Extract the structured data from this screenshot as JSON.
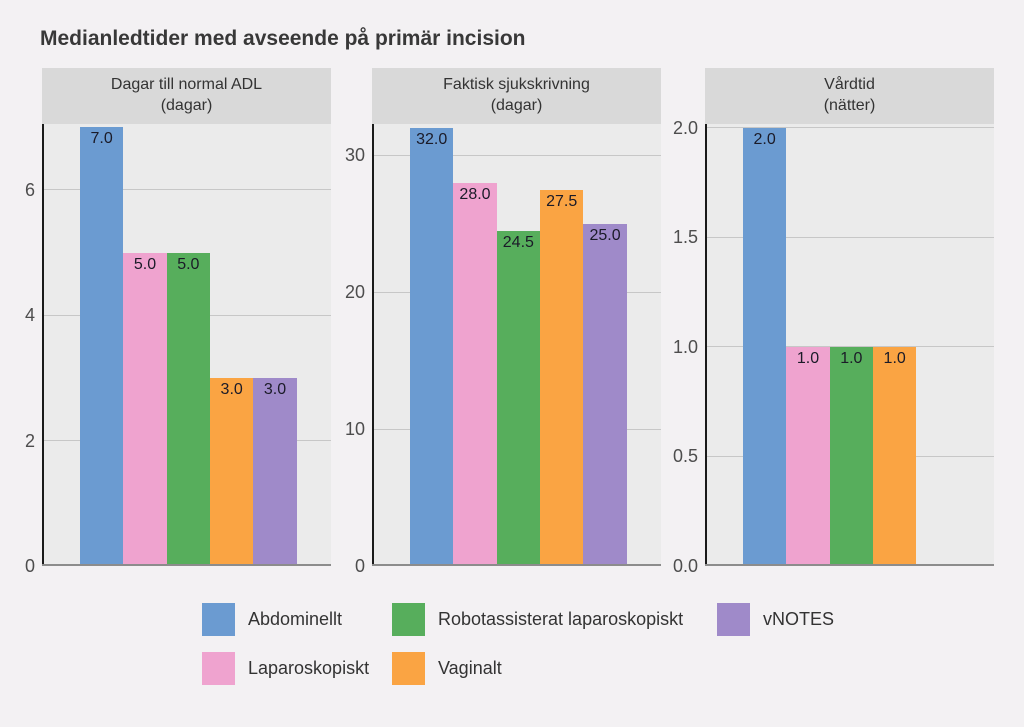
{
  "chart_data": {
    "type": "bar",
    "title": "Medianledtider med avseende på primär incision",
    "categories": [
      "Abdominellt",
      "Laparoskopiskt",
      "Robotassisterat laparoskopiskt",
      "Vaginalt",
      "vNOTES"
    ],
    "series_colors": {
      "Abdominellt": "#6B9BD1",
      "Laparoskopiskt": "#EFA3CF",
      "Robotassisterat laparoskopiskt": "#57AE5C",
      "Vaginalt": "#FAA443",
      "vNOTES": "#9F8AC9"
    },
    "panels": [
      {
        "title_lines": [
          "Dagar till normal ADL",
          "(dagar)"
        ],
        "values": [
          7.0,
          5.0,
          5.0,
          3.0,
          3.0
        ],
        "value_labels": [
          "7.0",
          "5.0",
          "5.0",
          "3.0",
          "3.0"
        ],
        "ylim": [
          0,
          7.05
        ],
        "yticks": [
          {
            "v": 0,
            "label": "0"
          },
          {
            "v": 2,
            "label": "2"
          },
          {
            "v": 4,
            "label": "4"
          },
          {
            "v": 6,
            "label": "6"
          }
        ]
      },
      {
        "title_lines": [
          "Faktisk sjukskrivning",
          "(dagar)"
        ],
        "values": [
          32.0,
          28.0,
          24.5,
          27.5,
          25.0
        ],
        "value_labels": [
          "32.0",
          "28.0",
          "24.5",
          "27.5",
          "25.0"
        ],
        "ylim": [
          0,
          32.3
        ],
        "yticks": [
          {
            "v": 0,
            "label": "0"
          },
          {
            "v": 10,
            "label": "10"
          },
          {
            "v": 20,
            "label": "20"
          },
          {
            "v": 30,
            "label": "30"
          }
        ]
      },
      {
        "title_lines": [
          "Vårdtid",
          "(nätter)"
        ],
        "values": [
          2.0,
          1.0,
          1.0,
          1.0,
          null
        ],
        "value_labels": [
          "2.0",
          "1.0",
          "1.0",
          "1.0",
          null
        ],
        "ylim": [
          0,
          2.018
        ],
        "yticks": [
          {
            "v": 0,
            "label": "0.0"
          },
          {
            "v": 0.5,
            "label": "0.5"
          },
          {
            "v": 1.0,
            "label": "1.0"
          },
          {
            "v": 1.5,
            "label": "1.5"
          },
          {
            "v": 2.0,
            "label": "2.0"
          }
        ]
      }
    ],
    "legend": {
      "rows": [
        [
          "Abdominellt",
          "Robotassisterat laparoskopiskt",
          "vNOTES"
        ],
        [
          "Laparoskopiskt",
          "Vaginalt"
        ]
      ]
    },
    "grid": "horizontal-major-only",
    "legend_position": "bottom"
  },
  "colors": {
    "page_background": "#F3F1F3",
    "panel_background": "#EBEBEB",
    "strip_background": "#D9D9D9",
    "gridline": "#C7C7C7",
    "y_axis_line": "#1A1A1A",
    "x_axis_line": "#8C8C8C",
    "tick_label": "#4D4D4D",
    "bar_value_label": "#1B1B28",
    "title_text": "#383838"
  }
}
